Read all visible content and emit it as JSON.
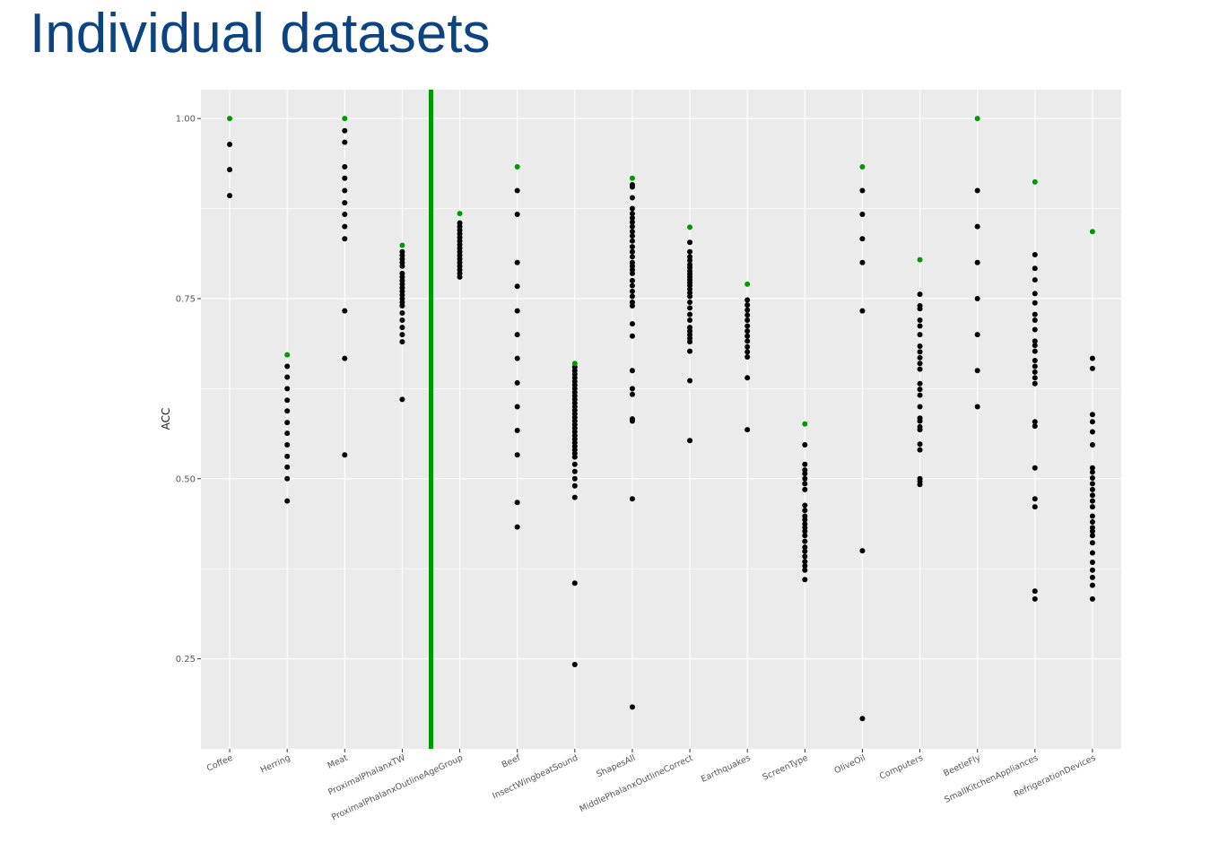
{
  "slide": {
    "title": "Individual datasets"
  },
  "colors": {
    "panel": "#ebebeb",
    "grid": "#ffffff",
    "point": "#000000",
    "best": "#009900",
    "divider": "#009900",
    "title": "#0b4481"
  },
  "chart_data": {
    "type": "scatter",
    "ylabel": "ACC",
    "xlabel": "",
    "ylim": [
      0.125,
      1.04
    ],
    "yticks": [
      0.25,
      0.5,
      0.75,
      1.0
    ],
    "ytick_labels": [
      "0.25",
      "0.50",
      "0.75",
      "1.00"
    ],
    "grid": true,
    "divider_after_category": "ProximalPhalanxTW",
    "categories": [
      {
        "name": "Coffee",
        "best": 1.0,
        "values": [
          0.964,
          0.929,
          0.893
        ]
      },
      {
        "name": "Herring",
        "best": 0.672,
        "values": [
          0.656,
          0.641,
          0.625,
          0.609,
          0.594,
          0.578,
          0.563,
          0.547,
          0.531,
          0.516,
          0.5,
          0.469
        ]
      },
      {
        "name": "Meat",
        "best": 1.0,
        "values": [
          0.983,
          0.967,
          0.933,
          0.917,
          0.9,
          0.883,
          0.867,
          0.85,
          0.833,
          0.733,
          0.667,
          0.533
        ]
      },
      {
        "name": "ProximalPhalanxTW",
        "best": 0.824,
        "values": [
          0.815,
          0.81,
          0.805,
          0.8,
          0.795,
          0.785,
          0.78,
          0.775,
          0.77,
          0.765,
          0.76,
          0.755,
          0.75,
          0.745,
          0.74,
          0.73,
          0.72,
          0.71,
          0.7,
          0.69,
          0.61
        ]
      },
      {
        "name": "ProximalPhalanxOutlineAgeGroup",
        "best": 0.868,
        "values": [
          0.855,
          0.85,
          0.845,
          0.84,
          0.835,
          0.83,
          0.825,
          0.82,
          0.815,
          0.81,
          0.805,
          0.8,
          0.795,
          0.79,
          0.785,
          0.78
        ]
      },
      {
        "name": "Beef",
        "best": 0.933,
        "values": [
          0.9,
          0.867,
          0.8,
          0.767,
          0.733,
          0.7,
          0.667,
          0.633,
          0.6,
          0.567,
          0.533,
          0.467,
          0.433
        ]
      },
      {
        "name": "InsectWingbeatSound",
        "best": 0.66,
        "values": [
          0.655,
          0.65,
          0.645,
          0.64,
          0.635,
          0.63,
          0.625,
          0.62,
          0.615,
          0.61,
          0.605,
          0.6,
          0.595,
          0.59,
          0.585,
          0.58,
          0.575,
          0.57,
          0.565,
          0.56,
          0.555,
          0.55,
          0.545,
          0.54,
          0.535,
          0.53,
          0.52,
          0.51,
          0.5,
          0.49,
          0.474,
          0.355,
          0.242
        ]
      },
      {
        "name": "ShapesAll",
        "best": 0.917,
        "values": [
          0.908,
          0.905,
          0.89,
          0.875,
          0.868,
          0.862,
          0.856,
          0.85,
          0.843,
          0.837,
          0.83,
          0.822,
          0.815,
          0.808,
          0.8,
          0.795,
          0.79,
          0.785,
          0.775,
          0.768,
          0.76,
          0.753,
          0.745,
          0.74,
          0.715,
          0.698,
          0.65,
          0.625,
          0.617,
          0.583,
          0.58,
          0.472,
          0.183
        ]
      },
      {
        "name": "MiddlePhalanxOutlineCorrect",
        "best": 0.849,
        "values": [
          0.828,
          0.815,
          0.808,
          0.803,
          0.797,
          0.793,
          0.788,
          0.784,
          0.78,
          0.776,
          0.772,
          0.768,
          0.763,
          0.758,
          0.753,
          0.745,
          0.737,
          0.728,
          0.72,
          0.71,
          0.705,
          0.7,
          0.695,
          0.69,
          0.677,
          0.636,
          0.553
        ]
      },
      {
        "name": "Earthquakes",
        "best": 0.77,
        "values": [
          0.748,
          0.741,
          0.734,
          0.727,
          0.72,
          0.712,
          0.705,
          0.698,
          0.691,
          0.683,
          0.676,
          0.669,
          0.64,
          0.568
        ]
      },
      {
        "name": "ScreenType",
        "best": 0.576,
        "values": [
          0.547,
          0.52,
          0.512,
          0.507,
          0.5,
          0.493,
          0.485,
          0.463,
          0.456,
          0.448,
          0.443,
          0.437,
          0.432,
          0.427,
          0.421,
          0.413,
          0.405,
          0.399,
          0.392,
          0.385,
          0.379,
          0.373,
          0.36
        ]
      },
      {
        "name": "OliveOil",
        "best": 0.933,
        "values": [
          0.9,
          0.867,
          0.833,
          0.8,
          0.733,
          0.4,
          0.167
        ]
      },
      {
        "name": "Computers",
        "best": 0.804,
        "values": [
          0.756,
          0.74,
          0.736,
          0.72,
          0.712,
          0.7,
          0.684,
          0.676,
          0.668,
          0.66,
          0.652,
          0.632,
          0.624,
          0.616,
          0.6,
          0.584,
          0.58,
          0.572,
          0.568,
          0.548,
          0.54,
          0.5,
          0.496,
          0.492
        ]
      },
      {
        "name": "BeetleFly",
        "best": 1.0,
        "values": [
          0.9,
          0.85,
          0.8,
          0.75,
          0.7,
          0.65,
          0.6
        ]
      },
      {
        "name": "SmallKitchenAppliances",
        "best": 0.912,
        "values": [
          0.811,
          0.792,
          0.776,
          0.757,
          0.744,
          0.728,
          0.72,
          0.707,
          0.691,
          0.685,
          0.677,
          0.664,
          0.656,
          0.648,
          0.64,
          0.632,
          0.579,
          0.573,
          0.515,
          0.472,
          0.461,
          0.344,
          0.333
        ]
      },
      {
        "name": "RefrigerationDevices",
        "best": 0.843,
        "values": [
          0.667,
          0.653,
          0.589,
          0.579,
          0.565,
          0.547,
          0.515,
          0.509,
          0.501,
          0.493,
          0.485,
          0.477,
          0.469,
          0.461,
          0.448,
          0.44,
          0.432,
          0.427,
          0.421,
          0.411,
          0.397,
          0.384,
          0.373,
          0.363,
          0.352,
          0.333
        ]
      }
    ]
  }
}
